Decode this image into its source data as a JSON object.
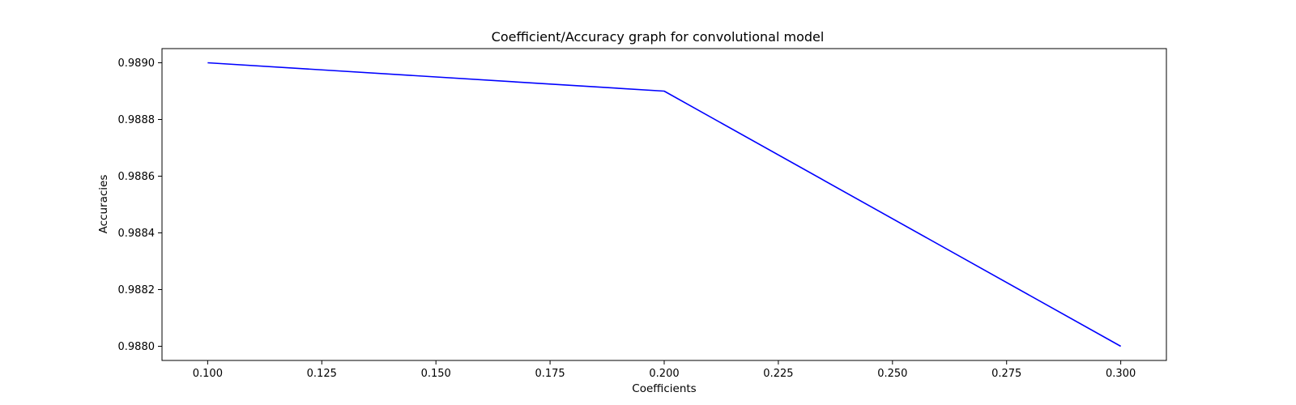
{
  "chart_data": {
    "type": "line",
    "title": "Coefficient/Accuracy graph for convolutional model",
    "xlabel": "Coefficients",
    "ylabel": "Accuracies",
    "x": [
      0.1,
      0.2,
      0.3
    ],
    "series": [
      {
        "values": [
          0.989,
          0.9889,
          0.988
        ],
        "color": "#0000ff"
      }
    ],
    "xlim": [
      0.09,
      0.31
    ],
    "ylim": [
      0.98795,
      0.98905
    ],
    "x_ticks": [
      0.1,
      0.125,
      0.15,
      0.175,
      0.2,
      0.225,
      0.25,
      0.275,
      0.3
    ],
    "x_tick_labels": [
      "0.100",
      "0.125",
      "0.150",
      "0.175",
      "0.200",
      "0.225",
      "0.250",
      "0.275",
      "0.300"
    ],
    "y_ticks": [
      0.988,
      0.9882,
      0.9884,
      0.9886,
      0.9888,
      0.989
    ],
    "y_tick_labels": [
      "0.9880",
      "0.9882",
      "0.9884",
      "0.9886",
      "0.9888",
      "0.9890"
    ],
    "grid": false,
    "legend": false
  }
}
